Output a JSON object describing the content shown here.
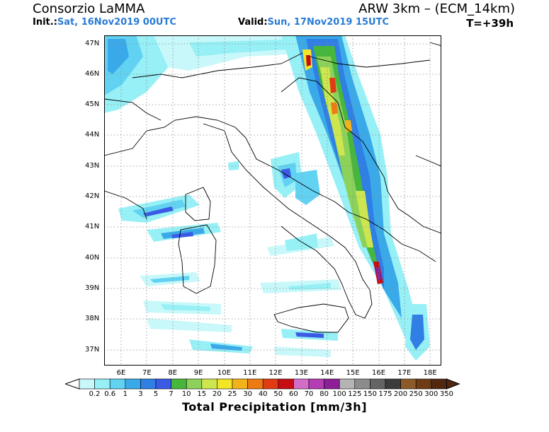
{
  "header": {
    "org": "Consorzio LaMMA",
    "model": "ARW 3km – (ECM_14km)",
    "init_label": "Init.:",
    "init_value": "Sat, 16Nov2019 00UTC",
    "valid_label": "Valid:",
    "valid_value": "Sun, 17Nov2019 15UTC",
    "timestep": "T=+39h"
  },
  "map": {
    "lat_labels": [
      "47N",
      "46N",
      "45N",
      "44N",
      "43N",
      "42N",
      "41N",
      "40N",
      "39N",
      "38N",
      "37N"
    ],
    "lon_labels": [
      "6E",
      "7E",
      "8E",
      "9E",
      "10E",
      "11E",
      "12E",
      "13E",
      "14E",
      "15E",
      "16E",
      "17E",
      "18E"
    ],
    "lat_range": [
      36.5,
      47.5
    ],
    "lon_range": [
      5.5,
      18.5
    ],
    "gridlines": true,
    "gridline_style": "dotted"
  },
  "colorbar": {
    "title": "Total Precipitation [mm/3h]",
    "labels": [
      "0.2",
      "0.6",
      "1",
      "3",
      "5",
      "7",
      "10",
      "15",
      "20",
      "25",
      "30",
      "40",
      "50",
      "60",
      "70",
      "80",
      "100",
      "125",
      "150",
      "175",
      "200",
      "250",
      "300",
      "350"
    ],
    "colors": [
      "#c8f8fa",
      "#96f0f6",
      "#62d2f2",
      "#3aa9ea",
      "#2f7fe4",
      "#3b5ae6",
      "#46b63c",
      "#8cd25a",
      "#cde650",
      "#f2e626",
      "#f2b21a",
      "#ee7a14",
      "#e03c14",
      "#c80c14",
      "#d26ec8",
      "#b43cb4",
      "#8c1e96",
      "#b4b4b4",
      "#8c8c8c",
      "#646464",
      "#3c3c3c",
      "#8c5a28",
      "#6e3c14",
      "#502810"
    ]
  }
}
